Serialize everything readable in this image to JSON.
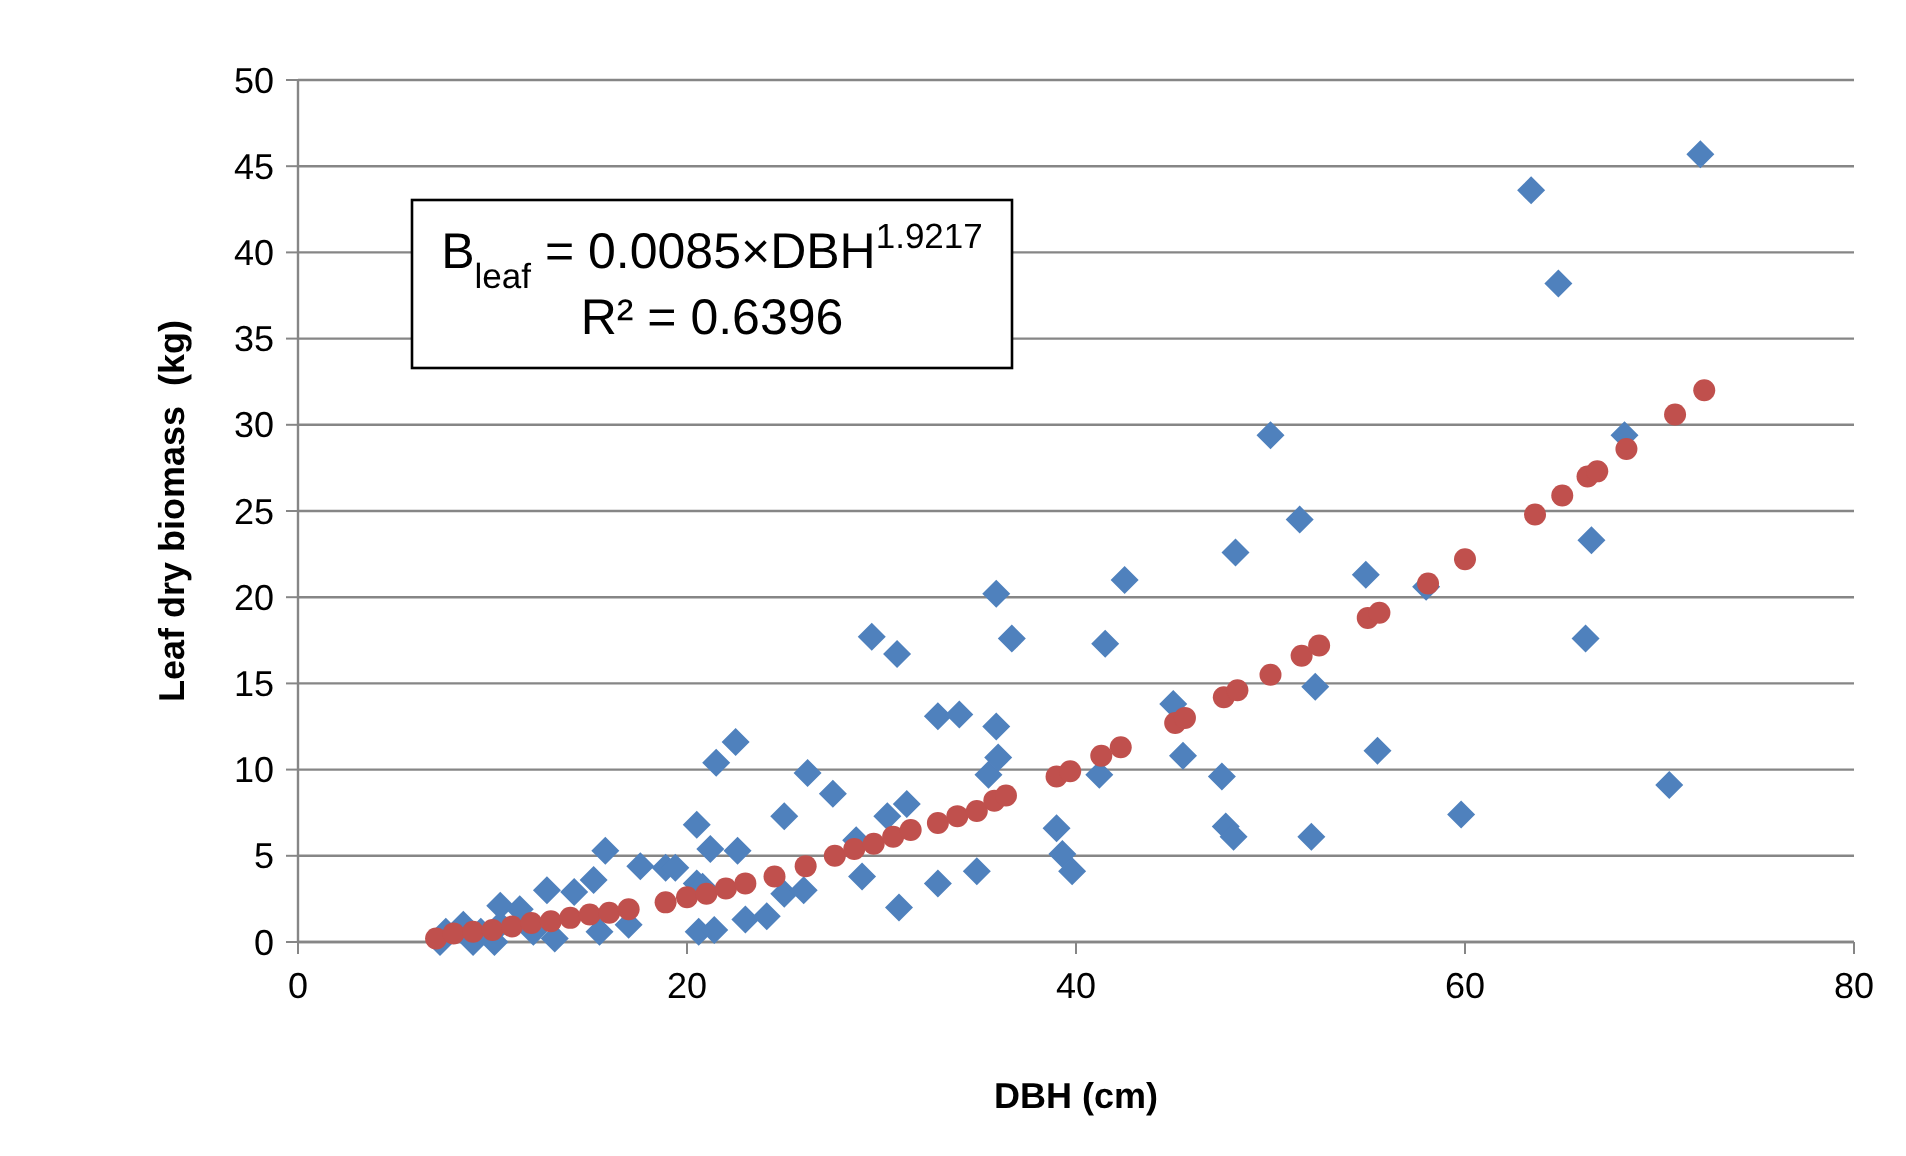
{
  "chart_data": {
    "type": "scatter",
    "xlabel": "DBH (cm)",
    "ylabel": "Leaf dry biomass  (kg)",
    "xlim": [
      0,
      80
    ],
    "xticks": [
      0,
      20,
      40,
      60,
      80
    ],
    "ylim": [
      0,
      50
    ],
    "yticks": [
      0,
      5,
      10,
      15,
      20,
      25,
      30,
      35,
      40,
      45,
      50
    ],
    "grid": "y",
    "annotations": [
      "B$_{leaf}$ = 0.0085×DBH$^{1.9217}$",
      "R² = 0.6396"
    ],
    "series": [
      {
        "color": "#4f81bd",
        "marker": "diamond",
        "x": [
          7.3,
          7.6,
          8.5,
          9,
          9.4,
          10.1,
          10.4,
          10.4,
          11.4,
          12.1,
          12.8,
          13.2,
          14.2,
          15.2,
          15.5,
          15.8,
          17,
          17.6,
          18.9,
          19.4,
          20.5,
          20.5,
          20.6,
          20.8,
          21.2,
          21.4,
          21.5,
          22.5,
          22.6,
          23,
          24.1,
          25,
          25,
          26,
          26.2,
          27.5,
          28.7,
          29,
          29.5,
          30.3,
          30.8,
          30.9,
          31.3,
          32.9,
          32.9,
          34,
          34.9,
          35.5,
          35.9,
          35.9,
          36,
          36.7,
          39,
          39.3,
          39.8,
          41.2,
          41.5,
          42.5,
          45,
          45.5,
          47.5,
          47.7,
          48.1,
          48.2,
          50,
          51.5,
          52.1,
          52.3,
          54.9,
          55.5,
          58,
          59.8,
          63.4,
          64.8,
          66.2,
          66.5,
          68.2,
          70.5,
          72.1
        ],
        "values": [
          0,
          0.6,
          1,
          0,
          0.6,
          0,
          1,
          2.1,
          1.9,
          0.6,
          3,
          0.2,
          2.9,
          3.6,
          0.6,
          5.3,
          1,
          4.4,
          4.3,
          4.3,
          6.8,
          3.4,
          0.6,
          3.2,
          5.4,
          0.7,
          10.4,
          11.6,
          5.3,
          1.3,
          1.5,
          7.3,
          2.8,
          3,
          9.8,
          8.6,
          5.9,
          3.8,
          17.7,
          7.3,
          16.7,
          2,
          8,
          13.1,
          3.4,
          13.2,
          4.1,
          9.7,
          20.2,
          12.5,
          10.7,
          17.6,
          6.6,
          5.1,
          4.1,
          9.7,
          17.3,
          21,
          13.8,
          10.8,
          9.6,
          6.7,
          6.1,
          22.6,
          29.4,
          24.5,
          6.1,
          14.8,
          21.3,
          11.1,
          20.6,
          7.4,
          43.6,
          38.2,
          17.6,
          23.3,
          29.4,
          9.1,
          45.7
        ]
      },
      {
        "color": "#c0504d",
        "marker": "circle",
        "x": [
          7.1,
          8,
          9,
          10,
          11,
          12,
          13,
          14,
          15,
          16,
          17,
          18.9,
          20,
          21,
          22,
          23,
          24.5,
          26.1,
          27.6,
          28.6,
          29.6,
          30.6,
          31.5,
          32.9,
          33.9,
          34.9,
          35.8,
          36.4,
          39,
          39.7,
          41.3,
          42.3,
          45.1,
          45.6,
          47.6,
          48.3,
          50,
          51.6,
          52.5,
          55,
          55.6,
          58.1,
          60,
          63.6,
          65,
          66.3,
          66.8,
          68.3,
          70.8,
          72.3
        ],
        "values": [
          0.2,
          0.5,
          0.6,
          0.7,
          0.9,
          1.1,
          1.2,
          1.4,
          1.6,
          1.7,
          1.9,
          2.3,
          2.6,
          2.8,
          3.1,
          3.4,
          3.8,
          4.4,
          5,
          5.4,
          5.7,
          6.1,
          6.5,
          6.9,
          7.3,
          7.6,
          8.2,
          8.5,
          9.6,
          9.9,
          10.8,
          11.3,
          12.7,
          13,
          14.2,
          14.6,
          15.5,
          16.6,
          17.2,
          18.8,
          19.1,
          20.8,
          22.2,
          24.8,
          25.9,
          27,
          27.3,
          28.6,
          30.6,
          32
        ]
      }
    ]
  }
}
